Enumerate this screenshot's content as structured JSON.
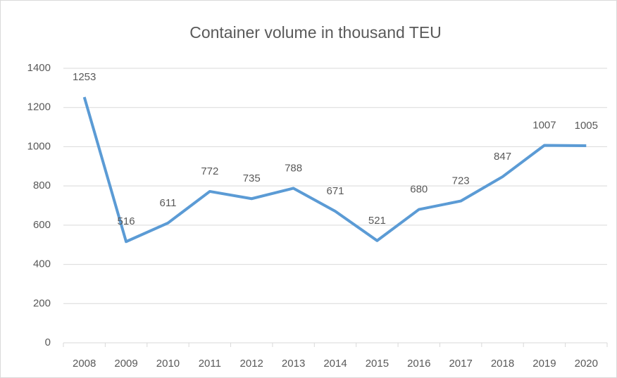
{
  "chart_data": {
    "type": "line",
    "title": "Container volume in thousand TEU",
    "categories": [
      "2008",
      "2009",
      "2010",
      "2011",
      "2012",
      "2013",
      "2014",
      "2015",
      "2016",
      "2017",
      "2018",
      "2019",
      "2020"
    ],
    "series": [
      {
        "name": "Container volume",
        "color": "#5b9bd5",
        "values": [
          1253,
          516,
          611,
          772,
          735,
          788,
          671,
          521,
          680,
          723,
          847,
          1007,
          1005
        ]
      }
    ],
    "ylim": [
      0,
      1400
    ],
    "yticks": [
      0,
      200,
      400,
      600,
      800,
      1000,
      1200,
      1400
    ],
    "grid": true
  }
}
